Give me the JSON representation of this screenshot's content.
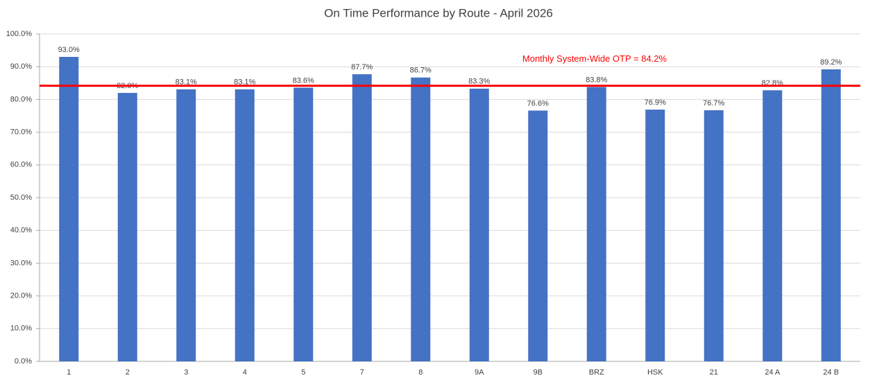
{
  "chart_data": {
    "type": "bar",
    "title": "On Time Performance by Route - April 2026",
    "categories": [
      "1",
      "2",
      "3",
      "4",
      "5",
      "7",
      "8",
      "9A",
      "9B",
      "BRZ",
      "HSK",
      "21",
      "24 A",
      "24 B"
    ],
    "values": [
      93.0,
      82.0,
      83.1,
      83.1,
      83.6,
      87.7,
      86.7,
      83.3,
      76.6,
      83.8,
      76.9,
      76.7,
      82.8,
      89.2
    ],
    "value_labels": [
      "93.0%",
      "82.0%",
      "83.1%",
      "83.1%",
      "83.6%",
      "87.7%",
      "86.7%",
      "83.3%",
      "76.6%",
      "83.8%",
      "76.9%",
      "76.7%",
      "82.8%",
      "89.2%"
    ],
    "color": "#4472c4",
    "ylim": [
      0,
      100
    ],
    "yticks": [
      {
        "value": 0,
        "label": "0.0%"
      },
      {
        "value": 10,
        "label": "10.0%"
      },
      {
        "value": 20,
        "label": "20.0%"
      },
      {
        "value": 30,
        "label": "30.0%"
      },
      {
        "value": 40,
        "label": "40.0%"
      },
      {
        "value": 50,
        "label": "50.0%"
      },
      {
        "value": 60,
        "label": "60.0%"
      },
      {
        "value": 70,
        "label": "70.0%"
      },
      {
        "value": 80,
        "label": "80.0%"
      },
      {
        "value": 90,
        "label": "90.0%"
      },
      {
        "value": 100,
        "label": "100.0%"
      }
    ],
    "grid": true,
    "reference_line": {
      "value": 84.2,
      "label": "Monthly System-Wide OTP = 84.2%",
      "color": "#ff0000"
    }
  }
}
